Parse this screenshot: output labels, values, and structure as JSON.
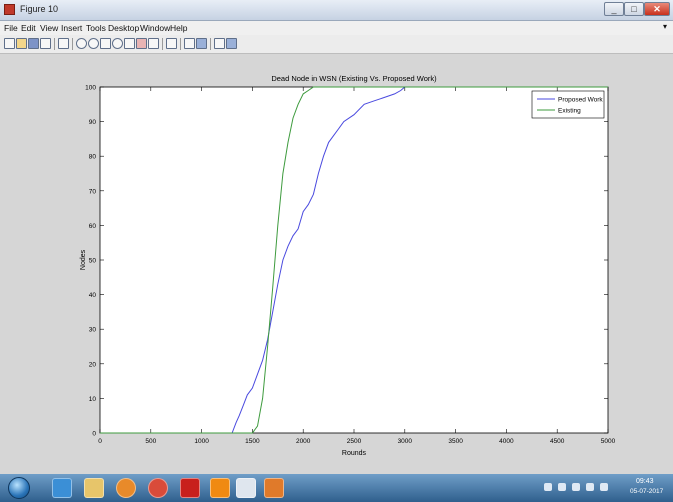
{
  "window": {
    "title": "Figure 10"
  },
  "menu": {
    "items": [
      "File",
      "Edit",
      "View",
      "Insert",
      "Tools",
      "Desktop",
      "Window",
      "Help"
    ]
  },
  "toolbar": {
    "icons": [
      "new-figure-icon",
      "open-file-icon",
      "save-icon",
      "print-icon",
      "edit-plot-icon",
      "zoom-in-icon",
      "zoom-out-icon",
      "pan-icon",
      "rotate-3d-icon",
      "data-cursor-icon",
      "brush-icon",
      "link-icon",
      "colorbar-icon",
      "legend-icon",
      "hide-plot-tools-icon",
      "show-plot-tools-icon"
    ]
  },
  "taskbar": {
    "icons": [
      "start-orb-icon",
      "ie-icon",
      "explorer-folder-icon",
      "media-player-icon",
      "chrome-icon",
      "acrobat-icon",
      "vlc-icon",
      "notepad-icon",
      "matlab-icon"
    ],
    "clock_time": "09:43",
    "clock_date": "05-07-2017"
  },
  "chart_data": {
    "type": "line",
    "title": "Dead Node in WSN (Existing Vs. Proposed Work)",
    "xlabel": "Rounds",
    "ylabel": "Nodes",
    "xlim": [
      0,
      5000
    ],
    "ylim": [
      0,
      100
    ],
    "xticks": [
      0,
      500,
      1000,
      1500,
      2000,
      2500,
      3000,
      3500,
      4000,
      4500,
      5000
    ],
    "yticks": [
      0,
      10,
      20,
      30,
      40,
      50,
      60,
      70,
      80,
      90,
      100
    ],
    "grid": false,
    "legend_position": "top-right",
    "series": [
      {
        "name": "Proposed Work",
        "color": "#4a4adf",
        "x": [
          0,
          1300,
          1340,
          1370,
          1410,
          1450,
          1500,
          1550,
          1600,
          1650,
          1700,
          1750,
          1800,
          1850,
          1900,
          1950,
          2000,
          2050,
          2100,
          2150,
          2200,
          2250,
          2300,
          2350,
          2400,
          2500,
          2600,
          2700,
          2800,
          2900,
          2960,
          3000,
          5000
        ],
        "y": [
          0,
          0,
          3,
          5,
          8,
          11,
          13,
          17,
          21,
          27,
          35,
          43,
          50,
          54,
          57,
          59,
          64,
          66,
          69,
          75,
          80,
          84,
          86,
          88,
          90,
          92,
          95,
          96,
          97,
          98,
          99,
          100,
          100
        ]
      },
      {
        "name": "Existing",
        "color": "#3e9b3e",
        "x": [
          0,
          1500,
          1550,
          1600,
          1650,
          1700,
          1750,
          1800,
          1850,
          1900,
          1950,
          2000,
          2050,
          2100,
          5000
        ],
        "y": [
          0,
          0,
          2,
          10,
          25,
          42,
          60,
          75,
          84,
          91,
          95,
          98,
          99,
          100,
          100
        ]
      }
    ]
  }
}
